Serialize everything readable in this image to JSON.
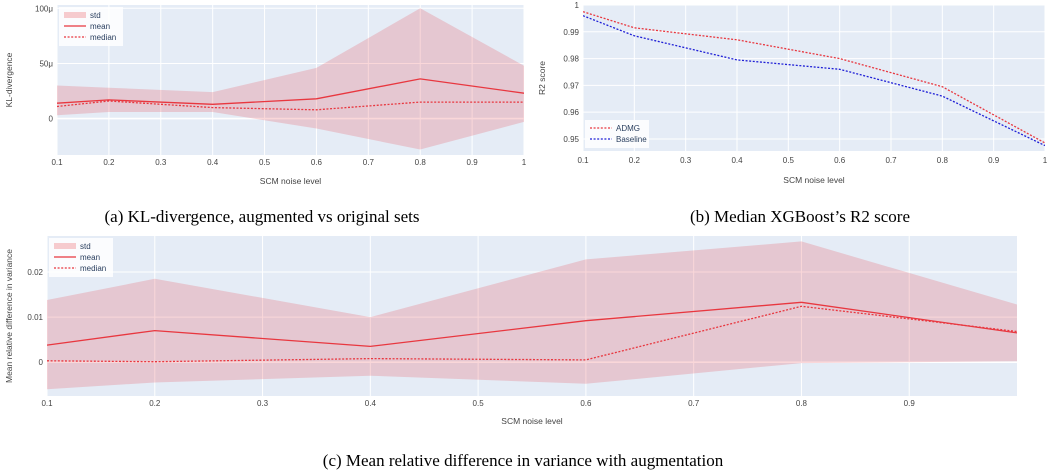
{
  "figure": {
    "captions": {
      "a": "(a) KL-divergence, augmented vs original sets",
      "b": "(b) Median XGBoost’s R2 score",
      "c": "(c) Mean relative difference in variance with augmentation"
    }
  },
  "colors": {
    "plot_bg": "#e5ecf6",
    "grid": "#ffffff",
    "red": "#e8373f",
    "band": "#e8373f",
    "blue": "#1f1fd6"
  },
  "chart_data": [
    {
      "id": "a",
      "type": "line",
      "title": "",
      "xlabel": "SCM noise level",
      "ylabel": "KL-divergence",
      "xlim": [
        0.1,
        1.0
      ],
      "ylim": [
        -33,
        103
      ],
      "xticks": [
        0.1,
        0.2,
        0.3,
        0.4,
        0.5,
        0.6,
        0.7,
        0.8,
        0.9,
        1.0
      ],
      "xtick_labels": [
        "0.1",
        "0.2",
        "0.3",
        "0.4",
        "0.5",
        "0.6",
        "0.7",
        "0.8",
        "0.9",
        "1"
      ],
      "yticks": [
        0,
        50,
        100
      ],
      "ytick_labels": [
        "0",
        "50μ",
        "100μ"
      ],
      "grid": true,
      "legend_position": "top-left",
      "x": [
        0.1,
        0.2,
        0.4,
        0.6,
        0.8,
        1.0
      ],
      "band": {
        "name": "std",
        "upper": [
          30,
          28,
          24,
          46,
          100,
          48
        ],
        "lower": [
          3,
          6,
          6,
          -9,
          -28,
          -3
        ]
      },
      "series": [
        {
          "name": "mean",
          "style": "solid",
          "values": [
            14,
            17,
            13,
            18,
            36,
            23
          ]
        },
        {
          "name": "median",
          "style": "dotted",
          "values": [
            11,
            16,
            10,
            8,
            15,
            15
          ]
        }
      ]
    },
    {
      "id": "b",
      "type": "line",
      "title": "",
      "xlabel": "SCM noise level",
      "ylabel": "R2 score",
      "xlim": [
        0.1,
        1.0
      ],
      "ylim": [
        0.9455,
        1.0
      ],
      "xticks": [
        0.1,
        0.2,
        0.3,
        0.4,
        0.5,
        0.6,
        0.7,
        0.8,
        0.9,
        1.0
      ],
      "xtick_labels": [
        "0.1",
        "0.2",
        "0.3",
        "0.4",
        "0.5",
        "0.6",
        "0.7",
        "0.8",
        "0.9",
        "1"
      ],
      "yticks": [
        0.95,
        0.96,
        0.97,
        0.98,
        0.99,
        1.0
      ],
      "ytick_labels": [
        "0.95",
        "0.96",
        "0.97",
        "0.98",
        "0.99",
        "1"
      ],
      "grid": true,
      "legend_position": "bottom-left",
      "x": [
        0.1,
        0.2,
        0.4,
        0.6,
        0.8,
        1.0
      ],
      "series": [
        {
          "name": "ADMG",
          "style": "dotted",
          "color": "#e8373f",
          "values": [
            0.9975,
            0.9915,
            0.987,
            0.98,
            0.9695,
            0.9485
          ]
        },
        {
          "name": "Baseline",
          "style": "dotted",
          "color": "#1f1fd6",
          "values": [
            0.996,
            0.9885,
            0.9795,
            0.976,
            0.966,
            0.9475
          ]
        }
      ]
    },
    {
      "id": "c",
      "type": "line",
      "title": "",
      "xlabel": "SCM noise level",
      "ylabel": "Mean relative difference in variance",
      "xlim": [
        0.1,
        1.0
      ],
      "ylim": [
        -0.0075,
        0.028
      ],
      "xticks": [
        0.1,
        0.2,
        0.3,
        0.4,
        0.5,
        0.6,
        0.7,
        0.8,
        0.9
      ],
      "xtick_labels": [
        "0.1",
        "0.2",
        "0.3",
        "0.4",
        "0.5",
        "0.6",
        "0.7",
        "0.8",
        "0.9"
      ],
      "yticks": [
        0,
        0.01,
        0.02
      ],
      "ytick_labels": [
        "0",
        "0.01",
        "0.02"
      ],
      "grid": true,
      "legend_position": "top-left",
      "x": [
        0.1,
        0.2,
        0.4,
        0.6,
        0.8,
        1.0
      ],
      "band": {
        "name": "std",
        "upper": [
          0.0138,
          0.0185,
          0.01,
          0.0228,
          0.0268,
          0.0128
        ],
        "lower": [
          -0.006,
          -0.0045,
          -0.003,
          -0.0048,
          -0.0002,
          0.0002
        ]
      },
      "series": [
        {
          "name": "mean",
          "style": "solid",
          "values": [
            0.0038,
            0.007,
            0.0035,
            0.0092,
            0.0133,
            0.0065
          ]
        },
        {
          "name": "median",
          "style": "dotted",
          "values": [
            0.0003,
            0.0001,
            0.0008,
            0.0005,
            0.0124,
            0.0068
          ]
        }
      ]
    }
  ]
}
